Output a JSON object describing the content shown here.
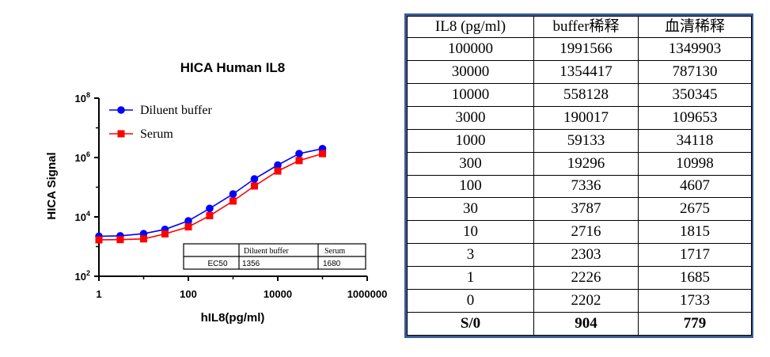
{
  "chart_data": {
    "type": "line",
    "title": "HICA Human IL8",
    "xlabel": "hIL8(pg/ml)",
    "ylabel": "HICA Signal",
    "xscale": "log",
    "yscale": "log",
    "xlim": [
      1,
      1000000
    ],
    "ylim": [
      100,
      100000000
    ],
    "x_ticks": [
      "1",
      "100",
      "10000",
      "1000000"
    ],
    "y_ticks": [
      {
        "base": "10",
        "exp": "2",
        "value": 100
      },
      {
        "base": "10",
        "exp": "4",
        "value": 10000
      },
      {
        "base": "10",
        "exp": "6",
        "value": 1000000
      },
      {
        "base": "10",
        "exp": "8",
        "value": 100000000
      }
    ],
    "legend_position": "top-left",
    "series": [
      {
        "name": "Diluent buffer",
        "color": "#0000ff",
        "marker": "circle",
        "x": [
          1,
          3,
          10,
          30,
          100,
          300,
          1000,
          3000,
          10000,
          30000,
          100000
        ],
        "y": [
          2226,
          2303,
          2716,
          3787,
          7336,
          19296,
          59133,
          190017,
          558128,
          1354417,
          1991566
        ]
      },
      {
        "name": "Serum",
        "color": "#ff0000",
        "marker": "square",
        "x": [
          1,
          3,
          10,
          30,
          100,
          300,
          1000,
          3000,
          10000,
          30000,
          100000
        ],
        "y": [
          1685,
          1717,
          1815,
          2675,
          4607,
          10998,
          34118,
          109653,
          350345,
          787130,
          1349903
        ]
      }
    ],
    "inset_table": {
      "headers": [
        "",
        "Diluent buffer",
        "Serum"
      ],
      "row": [
        "EC50",
        "1356",
        "1680"
      ]
    }
  },
  "table": {
    "headers": [
      "IL8 (pg/ml)",
      "buffer稀释",
      "血清稀释"
    ],
    "rows": [
      [
        "100000",
        "1991566",
        "1349903"
      ],
      [
        "30000",
        "1354417",
        "787130"
      ],
      [
        "10000",
        "558128",
        "350345"
      ],
      [
        "3000",
        "190017",
        "109653"
      ],
      [
        "1000",
        "59133",
        "34118"
      ],
      [
        "300",
        "19296",
        "10998"
      ],
      [
        "100",
        "7336",
        "4607"
      ],
      [
        "30",
        "3787",
        "2675"
      ],
      [
        "10",
        "2716",
        "1815"
      ],
      [
        "3",
        "2303",
        "1717"
      ],
      [
        "1",
        "2226",
        "1685"
      ],
      [
        "0",
        "2202",
        "1733"
      ]
    ],
    "summary": [
      "S/0",
      "904",
      "779"
    ]
  }
}
